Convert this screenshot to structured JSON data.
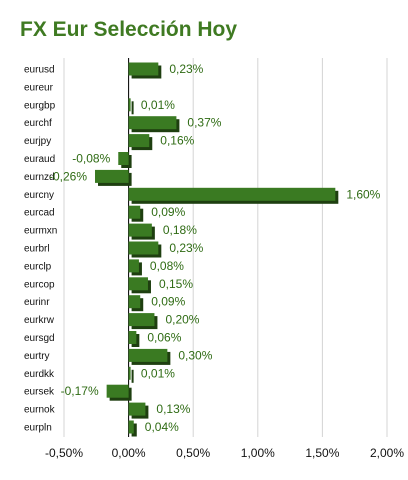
{
  "chart_data": {
    "type": "bar",
    "orientation": "horizontal",
    "title": "FX Eur Selección Hoy",
    "categories": [
      "eurusd",
      "eureur",
      "eurgbp",
      "eurchf",
      "eurjpy",
      "euraud",
      "eurnzd",
      "eurcny",
      "eurcad",
      "eurmxn",
      "eurbrl",
      "eurclp",
      "eurcop",
      "eurinr",
      "eurkrw",
      "eursgd",
      "eurtry",
      "eurdkk",
      "eursek",
      "eurnok",
      "eurpln"
    ],
    "values": [
      0.23,
      0,
      0.01,
      0.37,
      0.16,
      -0.08,
      -0.26,
      1.6,
      0.09,
      0.18,
      0.23,
      0.08,
      0.15,
      0.09,
      0.2,
      0.06,
      0.3,
      0.01,
      -0.17,
      0.13,
      0.04
    ],
    "value_labels": [
      "0,23%",
      "",
      "0,01%",
      "0,37%",
      "0,16%",
      "-0,08%",
      "-0,26%",
      "1,60%",
      "0,09%",
      "0,18%",
      "0,23%",
      "0,08%",
      "0,15%",
      "0,09%",
      "0,20%",
      "0,06%",
      "0,30%",
      "0,01%",
      "-0,17%",
      "0,13%",
      "0,04%"
    ],
    "xlim": [
      -0.5,
      2.0
    ],
    "ticks": [
      -0.5,
      0,
      0.5,
      1.0,
      1.5,
      2.0
    ],
    "tick_labels": [
      "-0,50%",
      "0,00%",
      "0,50%",
      "1,00%",
      "1,50%",
      "2,00%"
    ],
    "xlabel": "",
    "ylabel": "",
    "grid": true,
    "legend": "none",
    "colors": {
      "bar": "#3a7a22",
      "bar_shadow": "#1e3f10",
      "title": "#3f7a22",
      "value_label": "#2f6b14",
      "grid": "#d4d4d4",
      "axis": "#000000"
    }
  }
}
